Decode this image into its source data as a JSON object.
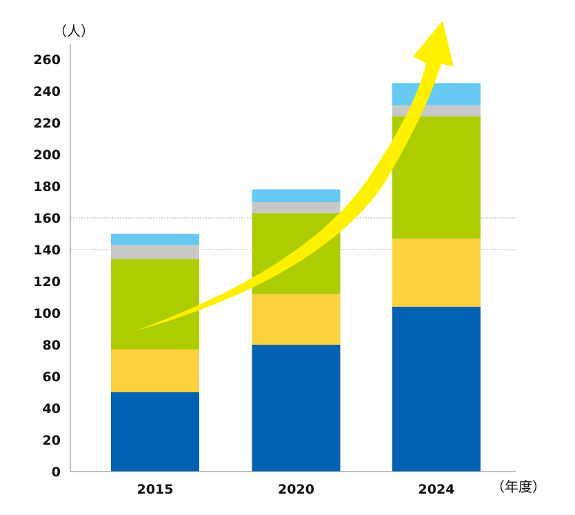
{
  "chart_data": {
    "type": "bar",
    "stacked": true,
    "title": "",
    "xlabel": "（年度）",
    "ylabel": "（人）",
    "categories": [
      "2015",
      "2020",
      "2024"
    ],
    "ylim": [
      0,
      260
    ],
    "yticks": [
      0,
      20,
      40,
      60,
      80,
      100,
      120,
      140,
      160,
      180,
      200,
      220,
      240,
      260
    ],
    "gridlines": [
      140,
      160
    ],
    "grid": "dotted at 140 and 160",
    "legend": "none",
    "series": [
      {
        "name": "series-1",
        "color": "#0062B1",
        "values": [
          50,
          80,
          104
        ]
      },
      {
        "name": "series-2",
        "color": "#FCD13E",
        "values": [
          27,
          32,
          43
        ]
      },
      {
        "name": "series-3",
        "color": "#ADCC02",
        "values": [
          57,
          51,
          77
        ]
      },
      {
        "name": "series-4",
        "color": "#C8C8C8",
        "values": [
          9,
          7,
          7
        ]
      },
      {
        "name": "series-5",
        "color": "#66C9F2",
        "values": [
          7,
          8,
          14
        ]
      }
    ],
    "totals": [
      150,
      178,
      245
    ],
    "annotations": [
      {
        "type": "trend-arrow",
        "color": "#FFF000",
        "direction": "upward, curving from 2015 to beyond 2024"
      }
    ]
  }
}
